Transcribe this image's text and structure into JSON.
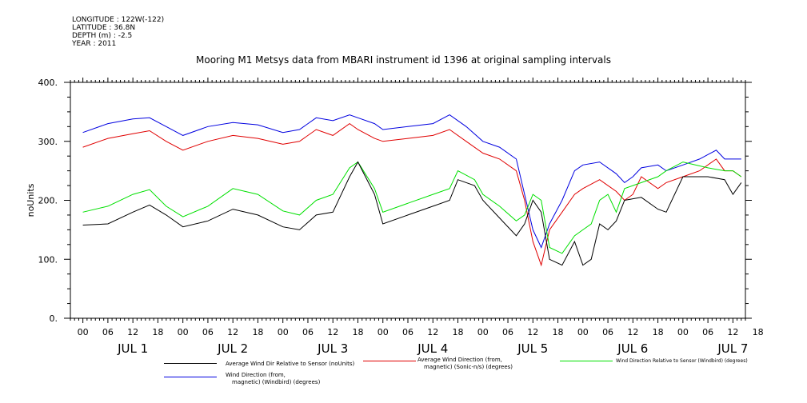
{
  "meta": {
    "longitude": "LONGITUDE : 122W(-122)",
    "latitude": "LATITUDE : 36.8N",
    "depth": "DEPTH (m) : -2.5",
    "year": "YEAR : 2011"
  },
  "chart_data": {
    "type": "line",
    "title": "Mooring M1 Metsys data from MBARI instrument id 1396 at original sampling intervals",
    "ylabel": "noUnits",
    "ylim": [
      0,
      400
    ],
    "yticks": [
      "0.",
      "100.",
      "200.",
      "300.",
      "400."
    ],
    "xlim_hours": [
      -3,
      159
    ],
    "x_hour_ticks": [
      "00",
      "06",
      "12",
      "18",
      "00",
      "06",
      "12",
      "18",
      "00",
      "06",
      "12",
      "18",
      "00",
      "06",
      "12",
      "18",
      "00",
      "06",
      "12",
      "18",
      "00",
      "06",
      "12",
      "18",
      "00",
      "06",
      "12",
      "18"
    ],
    "x_day_labels": [
      "JUL  1",
      "JUL  2",
      "JUL  3",
      "JUL  4",
      "JUL  5",
      "JUL  6",
      "JUL  7"
    ],
    "grid": false,
    "colors": {
      "black": "#000000",
      "red": "#e00000",
      "green": "#00e000",
      "blue": "#0000e0"
    },
    "series": [
      {
        "name": "Average Wind Dir Relative to Sensor (noUnits)",
        "color": "black",
        "points": [
          [
            0,
            158
          ],
          [
            6,
            160
          ],
          [
            12,
            180
          ],
          [
            16,
            192
          ],
          [
            20,
            175
          ],
          [
            24,
            155
          ],
          [
            30,
            165
          ],
          [
            36,
            185
          ],
          [
            42,
            175
          ],
          [
            48,
            155
          ],
          [
            52,
            150
          ],
          [
            56,
            175
          ],
          [
            60,
            180
          ],
          [
            64,
            240
          ],
          [
            66,
            265
          ],
          [
            70,
            210
          ],
          [
            72,
            160
          ],
          [
            78,
            175
          ],
          [
            84,
            190
          ],
          [
            88,
            200
          ],
          [
            90,
            235
          ],
          [
            94,
            225
          ],
          [
            96,
            200
          ],
          [
            100,
            170
          ],
          [
            104,
            140
          ],
          [
            106,
            160
          ],
          [
            108,
            200
          ],
          [
            110,
            180
          ],
          [
            112,
            100
          ],
          [
            115,
            90
          ],
          [
            118,
            130
          ],
          [
            120,
            90
          ],
          [
            122,
            100
          ],
          [
            124,
            160
          ],
          [
            126,
            150
          ],
          [
            128,
            165
          ],
          [
            130,
            200
          ],
          [
            134,
            205
          ],
          [
            138,
            185
          ],
          [
            140,
            180
          ],
          [
            144,
            240
          ],
          [
            150,
            240
          ],
          [
            154,
            235
          ],
          [
            156,
            210
          ],
          [
            158,
            230
          ]
        ]
      },
      {
        "name": "Average Wind Direction (from, magnetic) (Sonic-n/s) (degrees)",
        "color": "red",
        "points": [
          [
            0,
            290
          ],
          [
            6,
            305
          ],
          [
            12,
            313
          ],
          [
            16,
            318
          ],
          [
            20,
            300
          ],
          [
            24,
            285
          ],
          [
            30,
            300
          ],
          [
            36,
            310
          ],
          [
            42,
            305
          ],
          [
            48,
            295
          ],
          [
            52,
            300
          ],
          [
            56,
            320
          ],
          [
            60,
            310
          ],
          [
            64,
            330
          ],
          [
            66,
            320
          ],
          [
            70,
            305
          ],
          [
            72,
            300
          ],
          [
            78,
            305
          ],
          [
            84,
            310
          ],
          [
            88,
            320
          ],
          [
            92,
            300
          ],
          [
            96,
            280
          ],
          [
            100,
            270
          ],
          [
            104,
            250
          ],
          [
            106,
            200
          ],
          [
            108,
            130
          ],
          [
            110,
            90
          ],
          [
            112,
            150
          ],
          [
            115,
            180
          ],
          [
            118,
            210
          ],
          [
            120,
            220
          ],
          [
            124,
            235
          ],
          [
            128,
            215
          ],
          [
            130,
            200
          ],
          [
            132,
            210
          ],
          [
            134,
            240
          ],
          [
            138,
            220
          ],
          [
            140,
            230
          ],
          [
            144,
            240
          ],
          [
            148,
            250
          ],
          [
            152,
            270
          ],
          [
            154,
            250
          ],
          [
            156,
            250
          ],
          [
            158,
            240
          ]
        ]
      },
      {
        "name": "Wind Direction Relative to Sensor (Windbird) (degrees)",
        "color": "green",
        "points": [
          [
            0,
            180
          ],
          [
            6,
            190
          ],
          [
            12,
            210
          ],
          [
            16,
            218
          ],
          [
            20,
            190
          ],
          [
            24,
            172
          ],
          [
            30,
            190
          ],
          [
            36,
            220
          ],
          [
            42,
            210
          ],
          [
            48,
            182
          ],
          [
            52,
            175
          ],
          [
            56,
            200
          ],
          [
            60,
            210
          ],
          [
            64,
            255
          ],
          [
            66,
            265
          ],
          [
            70,
            220
          ],
          [
            72,
            180
          ],
          [
            78,
            195
          ],
          [
            84,
            210
          ],
          [
            88,
            220
          ],
          [
            90,
            250
          ],
          [
            94,
            235
          ],
          [
            96,
            210
          ],
          [
            100,
            190
          ],
          [
            104,
            165
          ],
          [
            106,
            175
          ],
          [
            108,
            210
          ],
          [
            110,
            200
          ],
          [
            112,
            120
          ],
          [
            115,
            110
          ],
          [
            118,
            140
          ],
          [
            120,
            150
          ],
          [
            122,
            160
          ],
          [
            124,
            200
          ],
          [
            126,
            210
          ],
          [
            128,
            180
          ],
          [
            130,
            220
          ],
          [
            134,
            230
          ],
          [
            138,
            240
          ],
          [
            140,
            250
          ],
          [
            144,
            265
          ],
          [
            150,
            255
          ],
          [
            154,
            250
          ],
          [
            156,
            250
          ],
          [
            158,
            240
          ]
        ]
      },
      {
        "name": "Wind Direction (from, magnetic) (Windbird) (degrees)",
        "color": "blue",
        "points": [
          [
            0,
            315
          ],
          [
            6,
            330
          ],
          [
            12,
            338
          ],
          [
            16,
            340
          ],
          [
            20,
            325
          ],
          [
            24,
            310
          ],
          [
            30,
            325
          ],
          [
            36,
            332
          ],
          [
            42,
            328
          ],
          [
            48,
            315
          ],
          [
            52,
            320
          ],
          [
            56,
            340
          ],
          [
            60,
            335
          ],
          [
            64,
            345
          ],
          [
            66,
            340
          ],
          [
            70,
            330
          ],
          [
            72,
            320
          ],
          [
            78,
            325
          ],
          [
            84,
            330
          ],
          [
            88,
            345
          ],
          [
            92,
            325
          ],
          [
            96,
            300
          ],
          [
            100,
            290
          ],
          [
            104,
            270
          ],
          [
            106,
            210
          ],
          [
            108,
            150
          ],
          [
            110,
            120
          ],
          [
            112,
            160
          ],
          [
            115,
            200
          ],
          [
            118,
            250
          ],
          [
            120,
            260
          ],
          [
            124,
            265
          ],
          [
            128,
            245
          ],
          [
            130,
            230
          ],
          [
            132,
            240
          ],
          [
            134,
            255
          ],
          [
            138,
            260
          ],
          [
            140,
            250
          ],
          [
            144,
            260
          ],
          [
            148,
            270
          ],
          [
            152,
            285
          ],
          [
            154,
            270
          ],
          [
            156,
            270
          ],
          [
            158,
            270
          ]
        ]
      }
    ],
    "legend_position": "bottom"
  },
  "legend": {
    "items": [
      {
        "text": "Average Wind Dir Relative to Sensor (noUnits)"
      },
      {
        "text1": "Average Wind Direction (from,",
        "text2": "magnetic) (Sonic-n/s) (degrees)"
      },
      {
        "text": "Wind Direction Relative to Sensor (Windbird) (degrees)"
      },
      {
        "text1": "Wind Direction (from,",
        "text2": "magnetic) (Windbird) (degrees)"
      }
    ]
  }
}
